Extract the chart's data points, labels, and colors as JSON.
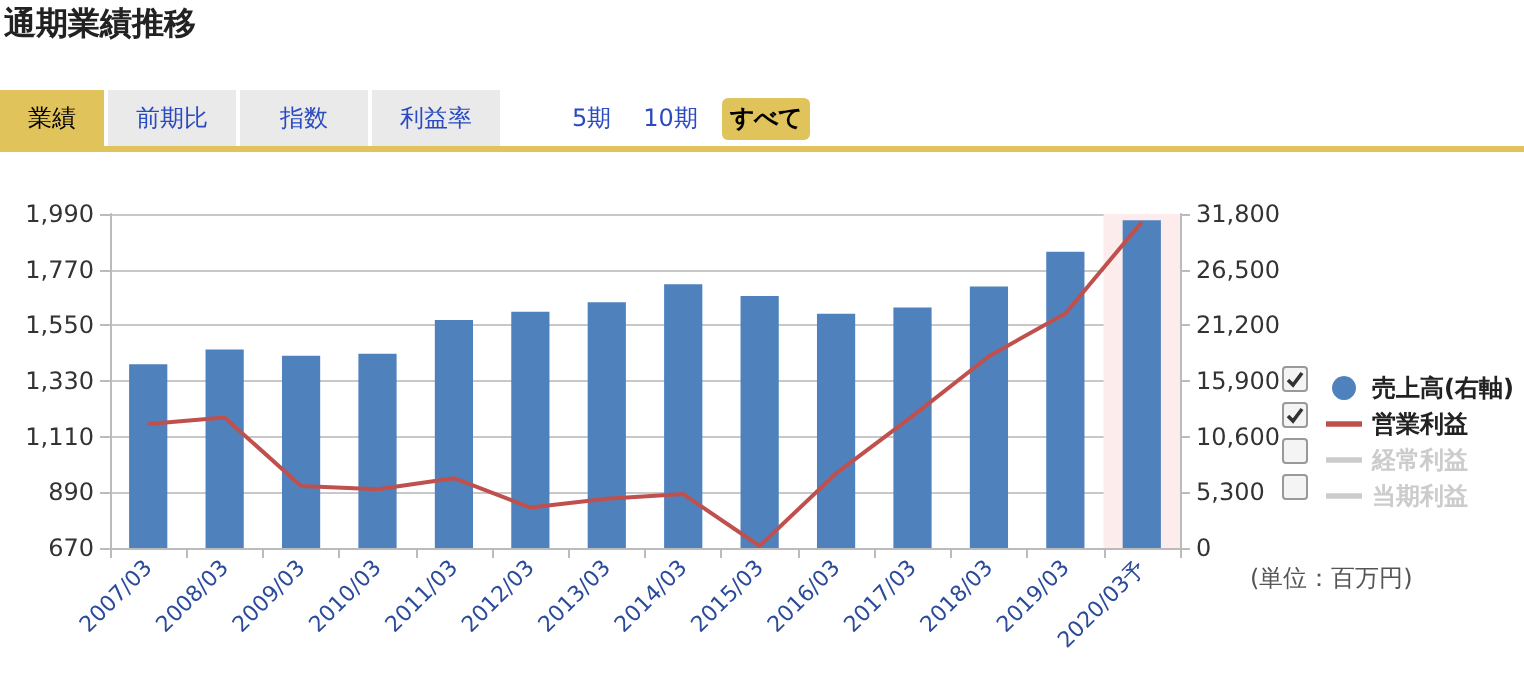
{
  "chart_data": {
    "type": "bar",
    "title": "通期業績推移",
    "annotations": [
      "業績",
      "前期比",
      "指数",
      "利益率",
      "5期",
      "10期",
      "すべて",
      "(単位：百万円)"
    ],
    "categories": [
      "2007/03",
      "2008/03",
      "2009/03",
      "2010/03",
      "2011/03",
      "2012/03",
      "2013/03",
      "2014/03",
      "2015/03",
      "2016/03",
      "2017/03",
      "2018/03",
      "2019/03",
      "2020/03予"
    ],
    "series": [
      {
        "name": "売上高(右軸)",
        "axis": "y2",
        "color": "#4f81bd",
        "values": [
          17500,
          18900,
          18300,
          18500,
          21700,
          22500,
          23400,
          25100,
          24000,
          22300,
          22900,
          24900,
          28200,
          31200
        ]
      },
      {
        "name": "営業利益",
        "type": "line",
        "color": "#c0504d",
        "values": [
          1160,
          1186,
          915,
          902,
          946,
          830,
          865,
          883,
          678,
          965,
          1191,
          1428,
          1597,
          1958
        ]
      },
      {
        "name": "経常利益",
        "type": "line",
        "color": "#cccccc",
        "values": [
          null,
          null,
          null,
          null,
          null,
          null,
          null,
          null,
          null,
          null,
          null,
          null,
          null,
          null
        ]
      },
      {
        "name": "当期利益",
        "type": "line",
        "color": "#cccccc",
        "values": [
          null,
          null,
          null,
          null,
          null,
          null,
          null,
          null,
          null,
          null,
          null,
          null,
          null,
          null
        ]
      }
    ],
    "ylim": [
      670,
      1990
    ],
    "yticks": [
      670,
      890,
      {
        "value": 1110,
        "label": "1,110"
      },
      {
        "value": 1330,
        "label": "1,330"
      },
      {
        "value": 1550,
        "label": "1,550"
      },
      {
        "value": 1770,
        "label": "1,770"
      },
      {
        "value": 1990,
        "label": "1,990"
      }
    ],
    "y2lim": [
      0,
      31800
    ],
    "y2ticks": [
      0,
      {
        "value": 5300,
        "label": "5,300"
      },
      {
        "value": 10600,
        "label": "10,600"
      },
      {
        "value": 15900,
        "label": "15,900"
      },
      {
        "value": 21200,
        "label": "21,200"
      },
      {
        "value": 26500,
        "label": "26,500"
      },
      {
        "value": 31800,
        "label": "31,800"
      }
    ],
    "bands": [
      {
        "axis": "x",
        "from": "2020/03予",
        "to": "2020/03予",
        "color": "#fdecec"
      }
    ],
    "grid": "y",
    "legend": "right",
    "marker": "none",
    "line_style": "solid"
  }
}
